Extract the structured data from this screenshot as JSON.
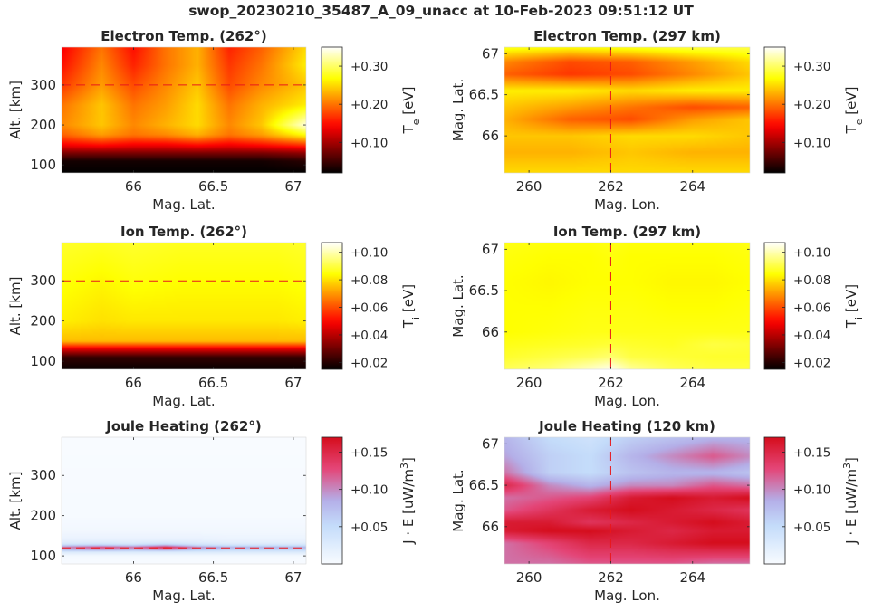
{
  "figure_title": "swop_20230210_35487_A_09_unacc at 10-Feb-2023 09:51:12 UT",
  "chart_data": [
    {
      "type": "heatmap",
      "title": "Electron Temp. (262°)",
      "xlabel": "Mag. Lat.",
      "ylabel": "Alt. [km]",
      "xticks": [
        "66",
        "66.5",
        "67"
      ],
      "yticks": [
        "100",
        "200",
        "300"
      ],
      "xlim": [
        65.55,
        67.08
      ],
      "ylim": [
        80,
        395
      ],
      "colormap": "hot",
      "colorbar": {
        "label": "T",
        "sub": "e",
        "unit": " [eV]",
        "ticks": [
          "+0.10",
          "+0.20",
          "+0.30"
        ],
        "range": [
          0.02,
          0.35
        ]
      },
      "cut_line": {
        "axis": "y",
        "value": 300,
        "color": "#e8181b"
      },
      "field": {
        "x": [
          65.55,
          65.8,
          66.0,
          66.2,
          66.4,
          66.6,
          66.8,
          67.08
        ],
        "y": [
          80,
          110,
          130,
          150,
          175,
          200,
          250,
          300,
          350,
          395
        ],
        "values": [
          [
            0.02,
            0.02,
            0.02,
            0.02,
            0.02,
            0.02,
            0.02,
            0.02
          ],
          [
            0.03,
            0.03,
            0.03,
            0.03,
            0.03,
            0.03,
            0.03,
            0.04
          ],
          [
            0.08,
            0.08,
            0.08,
            0.08,
            0.08,
            0.08,
            0.08,
            0.09
          ],
          [
            0.14,
            0.15,
            0.14,
            0.14,
            0.15,
            0.14,
            0.15,
            0.17
          ],
          [
            0.19,
            0.22,
            0.2,
            0.21,
            0.23,
            0.2,
            0.22,
            0.27
          ],
          [
            0.21,
            0.24,
            0.21,
            0.23,
            0.25,
            0.21,
            0.24,
            0.34
          ],
          [
            0.2,
            0.24,
            0.2,
            0.22,
            0.25,
            0.2,
            0.23,
            0.26
          ],
          [
            0.17,
            0.22,
            0.18,
            0.21,
            0.24,
            0.18,
            0.21,
            0.24
          ],
          [
            0.15,
            0.21,
            0.16,
            0.2,
            0.23,
            0.17,
            0.2,
            0.26
          ],
          [
            0.14,
            0.2,
            0.15,
            0.2,
            0.23,
            0.16,
            0.19,
            0.25
          ]
        ]
      }
    },
    {
      "type": "heatmap",
      "title": "Electron Temp. (297 km)",
      "xlabel": "Mag. Lon.",
      "ylabel": "Mag. Lat.",
      "xticks": [
        "260",
        "262",
        "264"
      ],
      "yticks": [
        "66",
        "66.5",
        "67"
      ],
      "xlim": [
        259.4,
        265.4
      ],
      "ylim": [
        65.55,
        67.08
      ],
      "colormap": "hot",
      "colorbar": {
        "label": "T",
        "sub": "e",
        "unit": " [eV]",
        "ticks": [
          "+0.10",
          "+0.20",
          "+0.30"
        ],
        "range": [
          0.02,
          0.35
        ]
      },
      "cut_line": {
        "axis": "x",
        "value": 262,
        "color": "#e8181b"
      },
      "field": {
        "x": [
          259.4,
          261.0,
          262.5,
          264.0,
          265.4
        ],
        "y": [
          65.55,
          65.8,
          66.0,
          66.2,
          66.35,
          66.55,
          66.75,
          66.9,
          67.08
        ],
        "values": [
          [
            0.25,
            0.25,
            0.25,
            0.25,
            0.25
          ],
          [
            0.23,
            0.23,
            0.24,
            0.23,
            0.23
          ],
          [
            0.24,
            0.24,
            0.25,
            0.25,
            0.24
          ],
          [
            0.23,
            0.19,
            0.18,
            0.22,
            0.24
          ],
          [
            0.24,
            0.22,
            0.2,
            0.18,
            0.19
          ],
          [
            0.26,
            0.26,
            0.25,
            0.26,
            0.26
          ],
          [
            0.19,
            0.17,
            0.18,
            0.21,
            0.24
          ],
          [
            0.21,
            0.18,
            0.19,
            0.22,
            0.25
          ],
          [
            0.28,
            0.27,
            0.28,
            0.29,
            0.29
          ]
        ]
      }
    },
    {
      "type": "heatmap",
      "title": "Ion Temp. (262°)",
      "xlabel": "Mag. Lat.",
      "ylabel": "Alt. [km]",
      "xticks": [
        "66",
        "66.5",
        "67"
      ],
      "yticks": [
        "100",
        "200",
        "300"
      ],
      "xlim": [
        65.55,
        67.08
      ],
      "ylim": [
        80,
        395
      ],
      "colormap": "hot",
      "colorbar": {
        "label": "T",
        "sub": "i",
        "unit": " [eV]",
        "ticks": [
          "+0.02",
          "+0.04",
          "+0.06",
          "+0.08",
          "+0.10"
        ],
        "range": [
          0.015,
          0.107
        ]
      },
      "cut_line": {
        "axis": "y",
        "value": 300,
        "color": "#e8181b"
      },
      "field": {
        "x": [
          65.55,
          65.8,
          66.0,
          66.3,
          66.6,
          66.9,
          67.08
        ],
        "y": [
          80,
          110,
          130,
          150,
          200,
          300,
          395
        ],
        "values": [
          [
            0.016,
            0.016,
            0.016,
            0.016,
            0.016,
            0.016,
            0.016
          ],
          [
            0.022,
            0.022,
            0.022,
            0.022,
            0.022,
            0.022,
            0.022
          ],
          [
            0.045,
            0.045,
            0.045,
            0.045,
            0.045,
            0.045,
            0.045
          ],
          [
            0.075,
            0.075,
            0.075,
            0.075,
            0.075,
            0.075,
            0.075
          ],
          [
            0.082,
            0.08,
            0.081,
            0.081,
            0.081,
            0.081,
            0.082
          ],
          [
            0.085,
            0.083,
            0.085,
            0.084,
            0.084,
            0.084,
            0.085
          ],
          [
            0.088,
            0.087,
            0.088,
            0.087,
            0.087,
            0.087,
            0.088
          ]
        ]
      }
    },
    {
      "type": "heatmap",
      "title": "Ion Temp. (297 km)",
      "xlabel": "Mag. Lon.",
      "ylabel": "Mag. Lat.",
      "xticks": [
        "260",
        "262",
        "264"
      ],
      "yticks": [
        "66",
        "66.5",
        "67"
      ],
      "xlim": [
        259.4,
        265.4
      ],
      "ylim": [
        65.55,
        67.08
      ],
      "colormap": "hot",
      "colorbar": {
        "label": "T",
        "sub": "i",
        "unit": " [eV]",
        "ticks": [
          "+0.02",
          "+0.04",
          "+0.06",
          "+0.08",
          "+0.10"
        ],
        "range": [
          0.015,
          0.107
        ]
      },
      "cut_line": {
        "axis": "x",
        "value": 262,
        "color": "#e8181b"
      },
      "field": {
        "x": [
          259.4,
          260.5,
          261.5,
          262.0,
          262.5,
          263.5,
          264.5,
          265.4
        ],
        "y": [
          65.55,
          65.7,
          65.85,
          66.0,
          66.3,
          66.6,
          66.9,
          67.08
        ],
        "values": [
          [
            0.092,
            0.095,
            0.102,
            0.106,
            0.098,
            0.092,
            0.09,
            0.09
          ],
          [
            0.088,
            0.09,
            0.092,
            0.094,
            0.09,
            0.089,
            0.088,
            0.088
          ],
          [
            0.086,
            0.087,
            0.088,
            0.089,
            0.088,
            0.087,
            0.09,
            0.089
          ],
          [
            0.084,
            0.085,
            0.086,
            0.086,
            0.086,
            0.086,
            0.086,
            0.086
          ],
          [
            0.084,
            0.084,
            0.085,
            0.085,
            0.085,
            0.084,
            0.084,
            0.085
          ],
          [
            0.084,
            0.083,
            0.084,
            0.084,
            0.084,
            0.083,
            0.083,
            0.084
          ],
          [
            0.085,
            0.084,
            0.084,
            0.085,
            0.084,
            0.084,
            0.084,
            0.085
          ],
          [
            0.086,
            0.085,
            0.085,
            0.086,
            0.085,
            0.085,
            0.085,
            0.086
          ]
        ]
      }
    },
    {
      "type": "heatmap",
      "title": "Joule Heating (262°)",
      "xlabel": "Mag. Lat.",
      "ylabel": "Alt. [km]",
      "xticks": [
        "66",
        "66.5",
        "67"
      ],
      "yticks": [
        "100",
        "200",
        "300"
      ],
      "xlim": [
        65.55,
        67.08
      ],
      "ylim": [
        80,
        395
      ],
      "colormap": "blue-white-red",
      "colorbar": {
        "label": "J · E [uW/m",
        "sub": "",
        "sup": "3",
        "unit": "]",
        "ticks": [
          "+0.05",
          "+0.10",
          "+0.15"
        ],
        "range": [
          0.0,
          0.17
        ]
      },
      "cut_line": {
        "axis": "y",
        "value": 120,
        "color": "#e8181b"
      },
      "field": {
        "x": [
          65.55,
          65.8,
          66.0,
          66.2,
          66.4,
          66.6,
          66.8,
          67.08
        ],
        "y": [
          80,
          100,
          110,
          115,
          120,
          125,
          130,
          140,
          160,
          200,
          395
        ],
        "values": [
          [
            0.0,
            0.0,
            0.0,
            0.0,
            0.0,
            0.0,
            0.0,
            0.0
          ],
          [
            0.004,
            0.004,
            0.004,
            0.004,
            0.004,
            0.004,
            0.004,
            0.004
          ],
          [
            0.03,
            0.03,
            0.03,
            0.03,
            0.03,
            0.03,
            0.03,
            0.03
          ],
          [
            0.07,
            0.08,
            0.07,
            0.08,
            0.06,
            0.05,
            0.05,
            0.05
          ],
          [
            0.11,
            0.14,
            0.12,
            0.16,
            0.11,
            0.09,
            0.09,
            0.09
          ],
          [
            0.07,
            0.08,
            0.07,
            0.1,
            0.06,
            0.05,
            0.05,
            0.05
          ],
          [
            0.03,
            0.035,
            0.03,
            0.04,
            0.03,
            0.025,
            0.025,
            0.025
          ],
          [
            0.015,
            0.015,
            0.015,
            0.015,
            0.015,
            0.012,
            0.012,
            0.012
          ],
          [
            0.006,
            0.006,
            0.006,
            0.006,
            0.006,
            0.006,
            0.006,
            0.006
          ],
          [
            0.002,
            0.002,
            0.002,
            0.002,
            0.002,
            0.002,
            0.002,
            0.002
          ],
          [
            0.0,
            0.0,
            0.0,
            0.0,
            0.0,
            0.0,
            0.0,
            0.0
          ]
        ]
      }
    },
    {
      "type": "heatmap",
      "title": "Joule Heating (120 km)",
      "xlabel": "Mag. Lon.",
      "ylabel": "Mag. Lat.",
      "xticks": [
        "260",
        "262",
        "264"
      ],
      "yticks": [
        "66",
        "66.5",
        "67"
      ],
      "xlim": [
        259.4,
        265.4
      ],
      "ylim": [
        65.55,
        67.08
      ],
      "colormap": "blue-white-red",
      "colorbar": {
        "label": "J · E [uW/m",
        "sub": "",
        "sup": "3",
        "unit": "]",
        "ticks": [
          "+0.05",
          "+0.10",
          "+0.15"
        ],
        "range": [
          0.0,
          0.17
        ]
      },
      "cut_line": {
        "axis": "x",
        "value": 262,
        "color": "#e8181b"
      },
      "field": {
        "x": [
          259.4,
          260.5,
          261.5,
          262.5,
          263.5,
          264.5,
          265.4
        ],
        "y": [
          65.55,
          65.8,
          65.95,
          66.05,
          66.2,
          66.35,
          66.5,
          66.65,
          66.85,
          67.08
        ],
        "values": [
          [
            0.11,
            0.11,
            0.12,
            0.12,
            0.12,
            0.11,
            0.11
          ],
          [
            0.11,
            0.13,
            0.15,
            0.15,
            0.16,
            0.17,
            0.17
          ],
          [
            0.16,
            0.17,
            0.17,
            0.16,
            0.15,
            0.16,
            0.16
          ],
          [
            0.16,
            0.16,
            0.14,
            0.15,
            0.16,
            0.17,
            0.16
          ],
          [
            0.12,
            0.14,
            0.16,
            0.17,
            0.16,
            0.15,
            0.14
          ],
          [
            0.11,
            0.12,
            0.13,
            0.16,
            0.17,
            0.16,
            0.17
          ],
          [
            0.15,
            0.1,
            0.08,
            0.1,
            0.1,
            0.12,
            0.11
          ],
          [
            0.11,
            0.06,
            0.05,
            0.07,
            0.08,
            0.08,
            0.07
          ],
          [
            0.09,
            0.06,
            0.05,
            0.08,
            0.1,
            0.12,
            0.1
          ],
          [
            0.08,
            0.05,
            0.04,
            0.06,
            0.07,
            0.08,
            0.08
          ]
        ]
      }
    }
  ]
}
